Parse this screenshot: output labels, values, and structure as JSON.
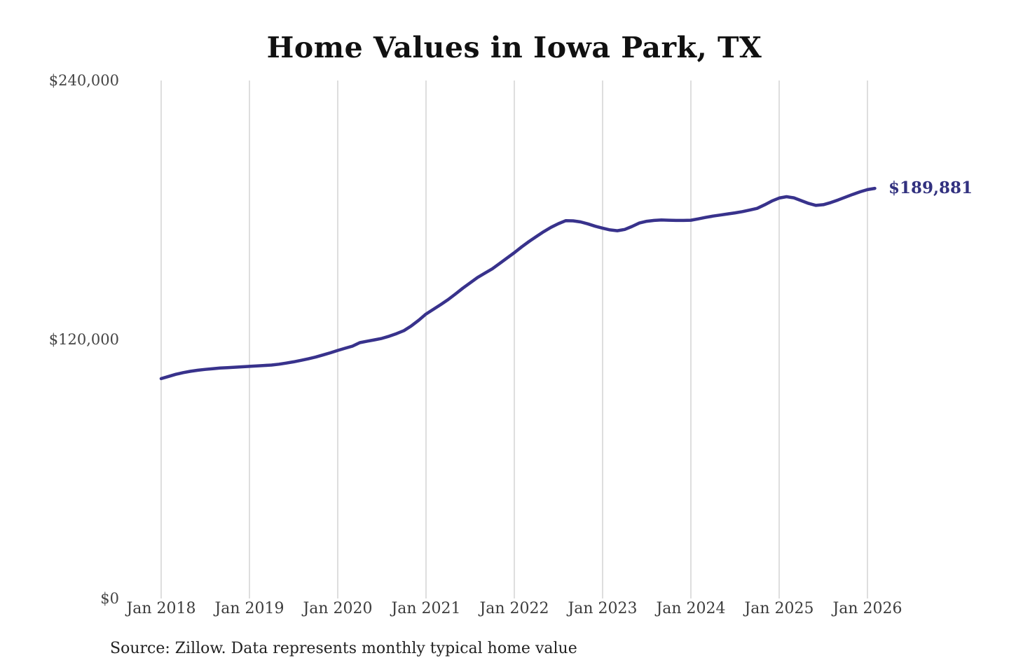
{
  "title": "Home Values in Iowa Park, TX",
  "annotation": {
    "label": "$189,881"
  },
  "source": "Source: Zillow. Data represents monthly typical home value",
  "colors": {
    "line": "#38328c",
    "annotation": "#32317f",
    "grid": "#cccccc",
    "title": "#111111",
    "axis_text": "#454545"
  },
  "chart_data": {
    "type": "line",
    "title": "Home Values in Iowa Park, TX",
    "xlabel": "",
    "ylabel": "",
    "x_unit": "month",
    "x_start": "Jan 2018",
    "x_end": "Feb 2026",
    "x_tick_labels": [
      "Jan 2018",
      "Jan 2019",
      "Jan 2020",
      "Jan 2021",
      "Jan 2022",
      "Jan 2023",
      "Jan 2024",
      "Jan 2025",
      "Jan 2026"
    ],
    "x_tick_month_index": [
      0,
      12,
      24,
      36,
      48,
      60,
      72,
      84,
      96
    ],
    "y_tick_labels": [
      "$0",
      "$120,000",
      "$240,000"
    ],
    "y_tick_values": [
      0,
      120000,
      240000
    ],
    "ylim": [
      0,
      240000
    ],
    "grid": "vertical-only",
    "legend": "none",
    "end_label": "$189,881",
    "end_value": 189881,
    "series": [
      {
        "name": "Monthly typical home value",
        "values": [
          101500,
          102500,
          103500,
          104300,
          104900,
          105400,
          105800,
          106100,
          106400,
          106600,
          106800,
          107000,
          107200,
          107400,
          107600,
          107800,
          108200,
          108700,
          109300,
          110000,
          110700,
          111500,
          112500,
          113500,
          114600,
          115600,
          116600,
          118200,
          118900,
          119500,
          120200,
          121200,
          122400,
          123800,
          126000,
          128600,
          131500,
          133700,
          135900,
          138200,
          140800,
          143500,
          146000,
          148500,
          150500,
          152500,
          155000,
          157500,
          160000,
          162700,
          165200,
          167500,
          169800,
          171800,
          173500,
          174900,
          174800,
          174300,
          173400,
          172300,
          171400,
          170600,
          170200,
          170800,
          172200,
          173800,
          174600,
          175000,
          175200,
          175100,
          175000,
          175000,
          175100,
          175700,
          176400,
          177000,
          177500,
          178000,
          178500,
          179100,
          179800,
          180600,
          182200,
          184000,
          185400,
          186000,
          185500,
          184200,
          182900,
          182000,
          182300,
          183300,
          184500,
          185800,
          187100,
          188300,
          189300,
          189881
        ]
      }
    ]
  }
}
